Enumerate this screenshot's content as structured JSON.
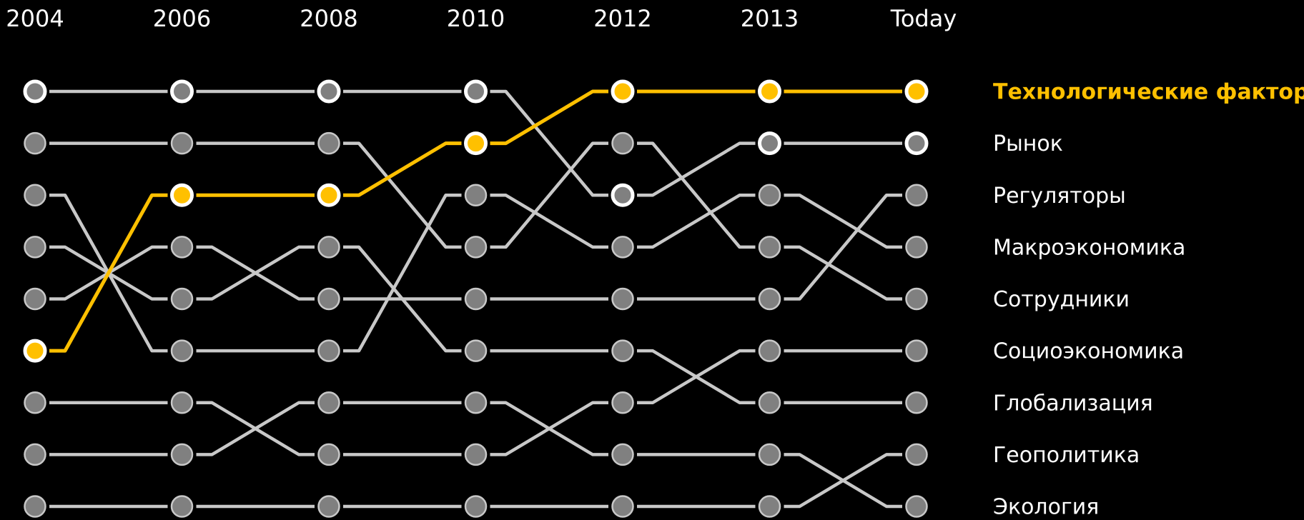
{
  "chart_data": {
    "type": "bump",
    "categories": [
      "2004",
      "2006",
      "2008",
      "2010",
      "2012",
      "2013",
      "Today"
    ],
    "ylim": [
      1,
      9
    ],
    "y_inverted": true,
    "series": [
      {
        "name": "Технологические факторы",
        "color": "#ffc000",
        "marker_color": "#ffc000",
        "marker_edge": "#ffffff",
        "values": [
          6,
          3,
          3,
          2,
          1,
          1,
          1
        ]
      },
      {
        "name": "Рынок",
        "color": "#c8c8c8",
        "marker_color": "#808080",
        "marker_edge": "#ffffff",
        "values": [
          1,
          1,
          1,
          1,
          3,
          2,
          2
        ]
      },
      {
        "name": "Регуляторы",
        "color": "#c8c8c8",
        "marker_color": "#808080",
        "marker_edge": "#c8c8c8",
        "values": [
          5,
          4,
          5,
          5,
          5,
          5,
          3
        ]
      },
      {
        "name": "Макроэкономика",
        "color": "#c8c8c8",
        "marker_color": "#808080",
        "marker_edge": "#c8c8c8",
        "values": [
          3,
          6,
          6,
          3,
          4,
          3,
          4
        ]
      },
      {
        "name": "Сотрудники",
        "color": "#c8c8c8",
        "marker_color": "#808080",
        "marker_edge": "#c8c8c8",
        "values": [
          2,
          2,
          2,
          4,
          2,
          4,
          5
        ]
      },
      {
        "name": "Социоэкономика",
        "color": "#c8c8c8",
        "marker_color": "#808080",
        "marker_edge": "#c8c8c8",
        "values": [
          7,
          7,
          8,
          8,
          7,
          6,
          6
        ]
      },
      {
        "name": "Глобализация",
        "color": "#c8c8c8",
        "marker_color": "#808080",
        "marker_edge": "#c8c8c8",
        "values": [
          4,
          5,
          4,
          6,
          6,
          7,
          7
        ]
      },
      {
        "name": "Геополитика",
        "color": "#c8c8c8",
        "marker_color": "#808080",
        "marker_edge": "#c8c8c8",
        "values": [
          9,
          9,
          9,
          9,
          9,
          9,
          8
        ]
      },
      {
        "name": "Экология",
        "color": "#c8c8c8",
        "marker_color": "#808080",
        "marker_edge": "#c8c8c8",
        "values": [
          8,
          8,
          7,
          7,
          8,
          8,
          9
        ]
      }
    ]
  }
}
